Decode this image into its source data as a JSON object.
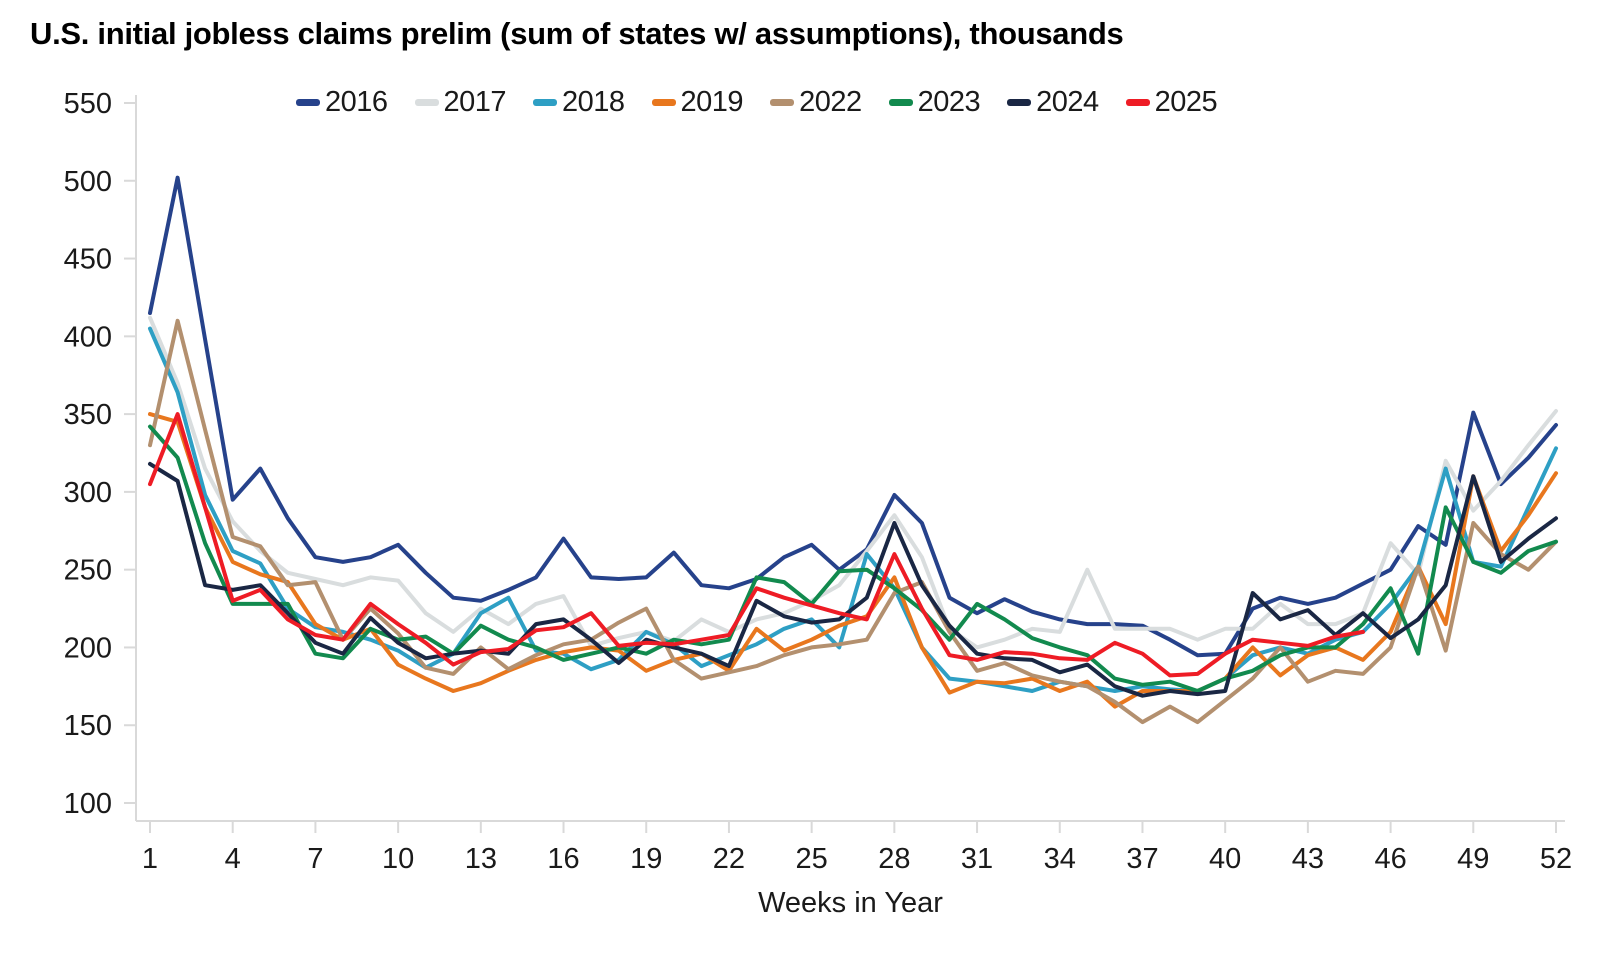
{
  "chart_data": {
    "type": "line",
    "title": "U.S. initial jobless claims prelim (sum of states w/ assumptions), thousands",
    "xlabel": "Weeks in Year",
    "ylabel": "",
    "unit": "thousands",
    "xlim": [
      1,
      52
    ],
    "ylim": [
      100,
      550
    ],
    "x_ticks": [
      1,
      4,
      7,
      10,
      13,
      16,
      19,
      22,
      25,
      28,
      31,
      34,
      37,
      40,
      43,
      46,
      49,
      52
    ],
    "y_ticks": [
      550,
      500,
      450,
      400,
      350,
      300,
      250,
      200,
      150,
      100
    ],
    "grid": false,
    "legend_position": "top",
    "axis_color": "#d9d9d9",
    "tick_label_color": "#1a1a1a",
    "x_is_week_number": true,
    "series": [
      {
        "name": "2016",
        "color": "#26428B",
        "values": [
          415,
          502,
          398,
          295,
          315,
          283,
          258,
          255,
          258,
          266,
          248,
          232,
          230,
          237,
          245,
          270,
          245,
          244,
          245,
          261,
          240,
          238,
          244,
          258,
          266,
          250,
          263,
          298,
          280,
          232,
          222,
          231,
          223,
          218,
          215,
          215,
          214,
          205,
          195,
          196,
          225,
          232,
          228,
          232,
          241,
          250,
          278,
          266,
          351,
          305,
          322,
          343
        ]
      },
      {
        "name": "2017",
        "color": "#D9DDDE",
        "values": [
          412,
          370,
          315,
          281,
          262,
          248,
          244,
          240,
          245,
          243,
          222,
          210,
          225,
          215,
          228,
          233,
          201,
          206,
          210,
          204,
          218,
          210,
          218,
          222,
          230,
          240,
          262,
          285,
          258,
          212,
          200,
          205,
          212,
          210,
          250,
          212,
          212,
          212,
          205,
          212,
          212,
          228,
          215,
          215,
          222,
          267,
          247,
          320,
          288,
          307,
          330,
          352
        ]
      },
      {
        "name": "2018",
        "color": "#2E9FC4",
        "values": [
          405,
          364,
          298,
          262,
          254,
          225,
          213,
          210,
          205,
          198,
          187,
          196,
          222,
          232,
          198,
          196,
          186,
          192,
          210,
          202,
          188,
          195,
          202,
          212,
          218,
          200,
          260,
          238,
          200,
          180,
          178,
          175,
          172,
          178,
          175,
          172,
          175,
          173,
          172,
          180,
          195,
          200,
          196,
          205,
          210,
          228,
          252,
          315,
          255,
          252,
          290,
          328
        ]
      },
      {
        "name": "2019",
        "color": "#E8771E",
        "values": [
          350,
          345,
          290,
          255,
          247,
          242,
          215,
          205,
          212,
          189,
          180,
          172,
          177,
          185,
          192,
          197,
          200,
          198,
          185,
          192,
          196,
          185,
          212,
          198,
          205,
          214,
          220,
          245,
          200,
          171,
          178,
          177,
          180,
          172,
          178,
          162,
          172,
          172,
          172,
          180,
          200,
          182,
          195,
          200,
          192,
          210,
          252,
          215,
          310,
          262,
          285,
          312
        ]
      },
      {
        "name": "2022",
        "color": "#B3906F",
        "values": [
          330,
          410,
          340,
          271,
          265,
          240,
          242,
          205,
          225,
          209,
          187,
          183,
          200,
          186,
          195,
          202,
          205,
          216,
          225,
          192,
          180,
          184,
          188,
          195,
          200,
          202,
          205,
          235,
          242,
          210,
          185,
          190,
          182,
          178,
          175,
          165,
          152,
          162,
          152,
          166,
          180,
          200,
          178,
          185,
          183,
          200,
          252,
          198,
          280,
          260,
          250,
          268
        ]
      },
      {
        "name": "2023",
        "color": "#128A4E",
        "values": [
          342,
          322,
          267,
          228,
          228,
          228,
          196,
          193,
          212,
          205,
          207,
          196,
          214,
          205,
          200,
          192,
          196,
          200,
          196,
          205,
          202,
          205,
          245,
          242,
          228,
          249,
          250,
          238,
          224,
          205,
          228,
          218,
          206,
          200,
          195,
          180,
          176,
          178,
          172,
          180,
          185,
          195,
          200,
          200,
          215,
          238,
          196,
          290,
          255,
          248,
          262,
          268
        ]
      },
      {
        "name": "2024",
        "color": "#1A2744",
        "values": [
          318,
          307,
          240,
          237,
          240,
          222,
          203,
          196,
          219,
          203,
          193,
          196,
          198,
          196,
          215,
          218,
          205,
          190,
          205,
          200,
          196,
          188,
          230,
          220,
          216,
          218,
          232,
          280,
          240,
          214,
          196,
          193,
          192,
          184,
          189,
          175,
          169,
          172,
          170,
          172,
          235,
          218,
          224,
          208,
          222,
          206,
          218,
          240,
          310,
          255,
          270,
          283
        ]
      },
      {
        "name": "2025",
        "color": "#EE1C25",
        "values": [
          305,
          350,
          290,
          230,
          237,
          218,
          208,
          205,
          228,
          215,
          203,
          189,
          197,
          199,
          211,
          213,
          222,
          201,
          203,
          202,
          205,
          208,
          238,
          232,
          227,
          222,
          218,
          260,
          225,
          195,
          192,
          197,
          196,
          193,
          192,
          203,
          196,
          182,
          183,
          196,
          205,
          203,
          201,
          207,
          210
        ]
      }
    ]
  }
}
